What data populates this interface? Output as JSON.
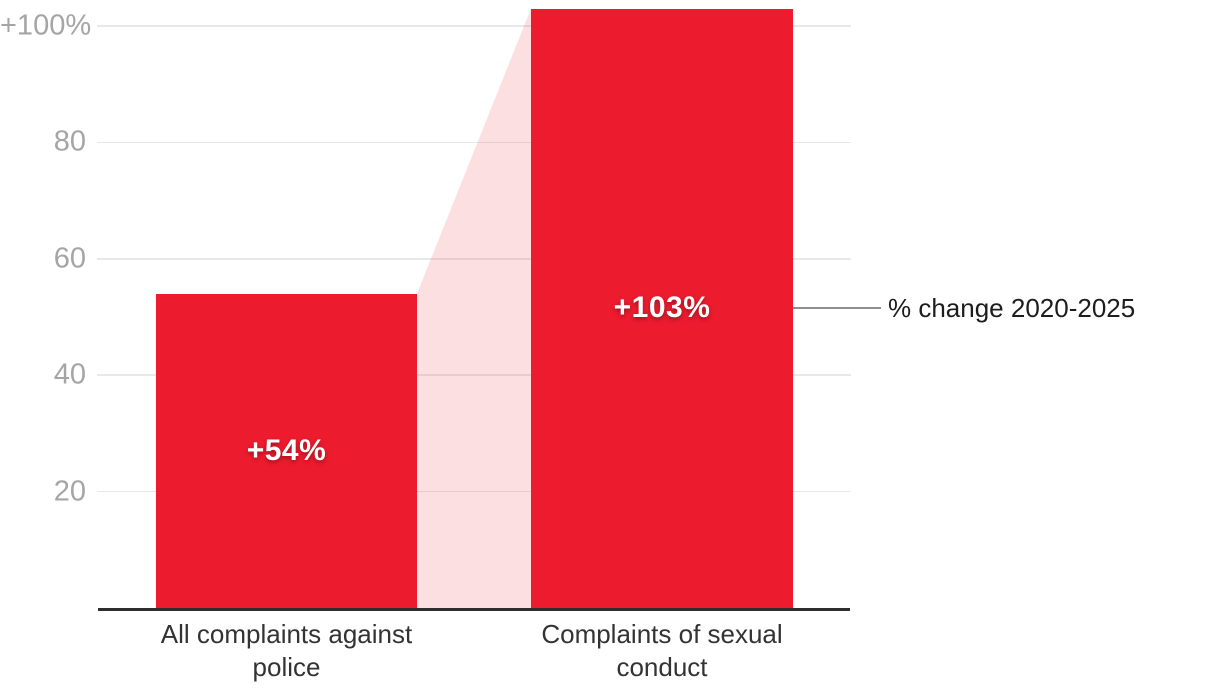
{
  "chart_data": {
    "type": "bar",
    "title": "",
    "categories": [
      "All complaints against\npolice",
      "Complaints of sexual\nconduct"
    ],
    "values": [
      54,
      103
    ],
    "value_labels": [
      "+54%",
      "+103%"
    ],
    "series": [
      {
        "name": "% change 2020-2025",
        "values": [
          54,
          103
        ]
      }
    ],
    "yticks": [
      {
        "value": 100,
        "label": "+100%"
      },
      {
        "value": 80,
        "label": "80"
      },
      {
        "value": 60,
        "label": "60"
      },
      {
        "value": 40,
        "label": "40"
      },
      {
        "value": 20,
        "label": "20"
      }
    ],
    "ylim": [
      0,
      107
    ],
    "xlabel": "",
    "ylabel": "",
    "grid": true,
    "legend_position": "none",
    "annotation": {
      "label": "% change 2020-2025",
      "target": "Complaints of sexual conduct"
    }
  },
  "colors": {
    "bar": "#ED1B2E",
    "connector_band": "#ED1B2E",
    "connector_band_opacity": "0.14",
    "gridline": "#E8E8E8",
    "axis_line": "#2E2E2E",
    "tick_text": "#A5A5A5",
    "category_text": "#333333",
    "value_text": "#FFFFFF",
    "annotation_line": "#8F8F8F",
    "annotation_text": "#1D1D1D",
    "background": "#FFFFFF"
  }
}
